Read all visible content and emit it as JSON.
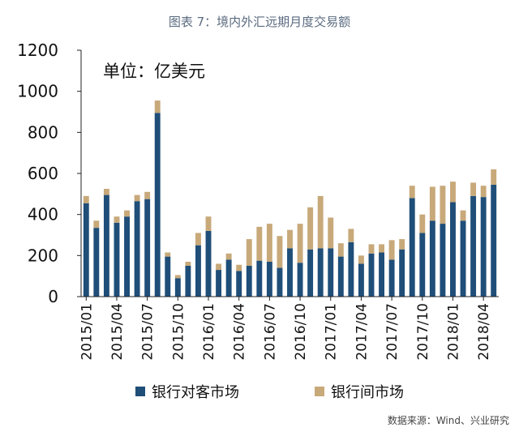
{
  "header": {
    "title": "图表 7：境内外汇远期月度交易额"
  },
  "source": "数据来源：Wind、兴业研究",
  "colors": {
    "series1": "#1f4e79",
    "series2": "#c8a97a",
    "axis": "#222222",
    "title": "#5b6b80"
  },
  "chart_data": {
    "type": "bar",
    "stacked": true,
    "unit_label": "单位：亿美元",
    "ylim": [
      0,
      1200
    ],
    "yticks": [
      0,
      200,
      400,
      600,
      800,
      1000,
      1200
    ],
    "tick_labels": [
      "2015/01",
      "2015/04",
      "2015/07",
      "2015/10",
      "2016/01",
      "2016/04",
      "2016/07",
      "2016/10",
      "2017/01",
      "2017/04",
      "2017/07",
      "2017/10",
      "2018/01",
      "2018/04"
    ],
    "categories": [
      "2015/01",
      "2015/02",
      "2015/03",
      "2015/04",
      "2015/05",
      "2015/06",
      "2015/07",
      "2015/08",
      "2015/09",
      "2015/10",
      "2015/11",
      "2015/12",
      "2016/01",
      "2016/02",
      "2016/03",
      "2016/04",
      "2016/05",
      "2016/06",
      "2016/07",
      "2016/08",
      "2016/09",
      "2016/10",
      "2016/11",
      "2016/12",
      "2017/01",
      "2017/02",
      "2017/03",
      "2017/04",
      "2017/05",
      "2017/06",
      "2017/07",
      "2017/08",
      "2017/09",
      "2017/10",
      "2017/11",
      "2017/12",
      "2018/01",
      "2018/02",
      "2018/03",
      "2018/04",
      "2018/05"
    ],
    "series": [
      {
        "name": "银行对客市场",
        "values": [
          455,
          335,
          495,
          360,
          390,
          465,
          475,
          895,
          195,
          90,
          150,
          250,
          320,
          130,
          180,
          125,
          150,
          175,
          170,
          140,
          235,
          165,
          230,
          235,
          235,
          195,
          265,
          160,
          210,
          215,
          180,
          230,
          480,
          310,
          370,
          355,
          460,
          370,
          490,
          485,
          545
        ]
      },
      {
        "name": "银行间市场",
        "values": [
          35,
          35,
          30,
          30,
          30,
          30,
          35,
          60,
          20,
          15,
          20,
          60,
          70,
          30,
          30,
          30,
          130,
          165,
          185,
          155,
          90,
          190,
          205,
          255,
          150,
          65,
          65,
          40,
          45,
          40,
          95,
          50,
          60,
          90,
          165,
          185,
          100,
          50,
          65,
          55,
          75
        ]
      }
    ],
    "legend_position": "bottom",
    "grid": false
  }
}
